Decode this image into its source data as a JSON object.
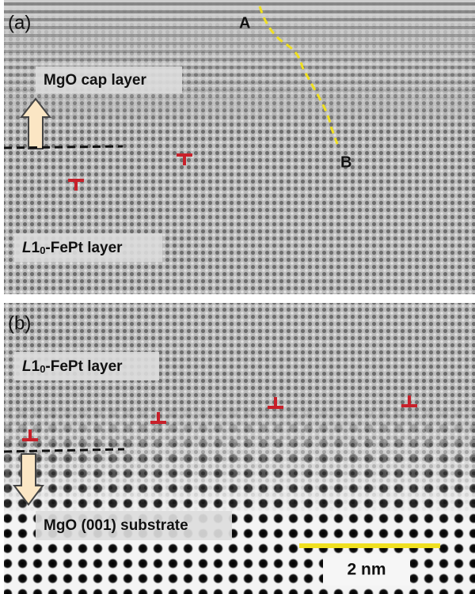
{
  "panel_a": {
    "label": "(a)",
    "point_a": "A",
    "point_b": "B",
    "cap_label": "MgO cap layer",
    "fept_label": {
      "italic": "L",
      "number": "1",
      "subscript": "0",
      "text": "-FePt layer"
    }
  },
  "panel_b": {
    "label": "(b)",
    "fept_label": {
      "italic": "L",
      "number": "1",
      "subscript": "0",
      "text": "-FePt layer"
    },
    "substrate_label": "MgO (001) substrate",
    "scale_bar": "2 nm"
  }
}
